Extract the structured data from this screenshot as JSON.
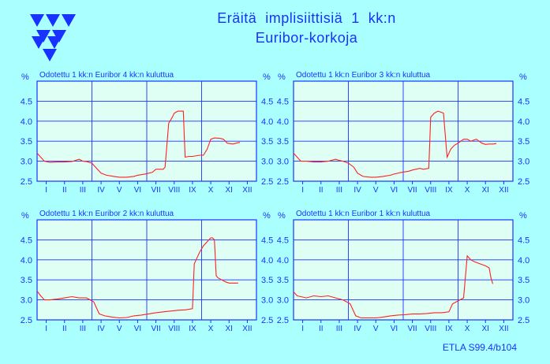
{
  "page": {
    "title_line1": "Eräitä  implisiittisiä  1  kk:n",
    "title_line2": "Euribor-korkoja",
    "footer": "ETLA S99.4/b104"
  },
  "colors": {
    "background": "#aaffff",
    "plot_bg": "#dffff5",
    "frame": "#1a32ff",
    "line": "#ff2020",
    "text": "#1a32ff"
  },
  "chart_data": [
    {
      "type": "line",
      "title": "Odotettu 1 kk:n Euribor 4 kk:n kuluttua",
      "ylabel": "%",
      "ylim": [
        2.5,
        5.0
      ],
      "yticks": [
        "2.5",
        "3.0",
        "3.5",
        "4.0",
        "4.5"
      ],
      "xticks": [
        "I",
        "II",
        "III",
        "IV",
        "V",
        "VI",
        "VII",
        "VIII",
        "IX",
        "X",
        "XI",
        "XII"
      ],
      "xlim": [
        0.5,
        12.5
      ],
      "series": [
        {
          "x": [
            0.5,
            0.7,
            0.9,
            1.2,
            1.6,
            2,
            2.4,
            2.8,
            3.0,
            3.2,
            3.5,
            3.8,
            4.0,
            4.3,
            4.7,
            5,
            5.4,
            5.8,
            6,
            6.4,
            6.8,
            7,
            7.4,
            7.5,
            7.7,
            7.9,
            8.0,
            8.2,
            8.4,
            8.5,
            8.6,
            8.8,
            9.0,
            9.4,
            9.6,
            9.8,
            10.0,
            10.2,
            10.5,
            10.7,
            10.9,
            11.2,
            11.4,
            11.6
          ],
          "values": [
            3.2,
            3.1,
            3.0,
            2.97,
            2.98,
            2.98,
            2.99,
            3.05,
            3.0,
            2.99,
            2.95,
            2.8,
            2.7,
            2.65,
            2.62,
            2.6,
            2.6,
            2.62,
            2.65,
            2.68,
            2.72,
            2.8,
            2.8,
            2.85,
            3.95,
            4.1,
            4.2,
            4.25,
            4.25,
            4.25,
            3.1,
            3.12,
            3.12,
            3.15,
            3.15,
            3.3,
            3.55,
            3.58,
            3.57,
            3.55,
            3.45,
            3.43,
            3.45,
            3.47
          ]
        }
      ]
    },
    {
      "type": "line",
      "title": "Odotettu 1 kk:n Euribor 3 kk:n kuluttua",
      "ylabel": "%",
      "ylim": [
        2.5,
        5.0
      ],
      "yticks": [
        "2.5",
        "3.0",
        "3.5",
        "4.0",
        "4.5"
      ],
      "xticks": [
        "I",
        "II",
        "III",
        "IV",
        "V",
        "VI",
        "VII",
        "VIII",
        "IX",
        "X",
        "XI",
        "XII"
      ],
      "xlim": [
        0.5,
        12.5
      ],
      "series": [
        {
          "x": [
            0.5,
            0.7,
            0.9,
            1.2,
            1.6,
            2,
            2.4,
            2.8,
            3.0,
            3.2,
            3.5,
            3.8,
            4.0,
            4.3,
            4.7,
            5,
            5.4,
            5.8,
            6,
            6.4,
            6.8,
            7,
            7.4,
            7.6,
            7.9,
            8.0,
            8.2,
            8.4,
            8.6,
            8.7,
            8.9,
            9.1,
            9.3,
            9.5,
            9.8,
            10.0,
            10.2,
            10.5,
            10.8,
            11.0,
            11.2,
            11.4,
            11.6
          ],
          "values": [
            3.2,
            3.1,
            3.0,
            3.0,
            2.98,
            2.98,
            3.0,
            3.05,
            3.02,
            3.0,
            2.95,
            2.85,
            2.7,
            2.62,
            2.6,
            2.6,
            2.62,
            2.65,
            2.68,
            2.72,
            2.75,
            2.78,
            2.82,
            2.8,
            2.82,
            4.1,
            4.2,
            4.25,
            4.22,
            4.2,
            3.1,
            3.3,
            3.4,
            3.45,
            3.55,
            3.55,
            3.5,
            3.55,
            3.45,
            3.42,
            3.43,
            3.43,
            3.44
          ]
        }
      ]
    },
    {
      "type": "line",
      "title": "Odotettu 1 kk:n Euribor 2 kk:n kuluttua",
      "ylabel": "%",
      "ylim": [
        2.5,
        5.0
      ],
      "yticks": [
        "2.5",
        "3.0",
        "3.5",
        "4.0",
        "4.5"
      ],
      "xticks": [
        "I",
        "II",
        "III",
        "IV",
        "V",
        "VI",
        "VII",
        "VIII",
        "IX",
        "X",
        "XI",
        "XII"
      ],
      "xlim": [
        0.5,
        12.5
      ],
      "series": [
        {
          "x": [
            0.5,
            0.7,
            0.9,
            1.2,
            1.6,
            2,
            2.4,
            2.8,
            3.2,
            3.6,
            3.9,
            4.2,
            4.6,
            5,
            5.4,
            5.8,
            6.2,
            6.6,
            7,
            7.4,
            7.8,
            8.2,
            8.6,
            9.0,
            9.1,
            9.2,
            9.4,
            9.6,
            9.8,
            10.0,
            10.1,
            10.2,
            10.3,
            10.4,
            10.6,
            10.8,
            11.0,
            11.3,
            11.5
          ],
          "values": [
            3.22,
            3.1,
            3.0,
            3.0,
            3.02,
            3.05,
            3.08,
            3.05,
            3.05,
            2.95,
            2.65,
            2.6,
            2.57,
            2.55,
            2.56,
            2.6,
            2.62,
            2.65,
            2.68,
            2.7,
            2.72,
            2.74,
            2.75,
            2.78,
            3.9,
            4.0,
            4.2,
            4.35,
            4.45,
            4.55,
            4.55,
            4.5,
            3.6,
            3.55,
            3.5,
            3.45,
            3.42,
            3.42,
            3.42
          ]
        }
      ]
    },
    {
      "type": "line",
      "title": "Odotettu 1 kk:n Euribor 1 kk:n kuluttua",
      "ylabel": "%",
      "ylim": [
        2.5,
        5.0
      ],
      "yticks": [
        "2.5",
        "3.0",
        "3.5",
        "4.0",
        "4.5"
      ],
      "xticks": [
        "I",
        "II",
        "III",
        "IV",
        "V",
        "VI",
        "VII",
        "VIII",
        "IX",
        "X",
        "XI",
        "XII"
      ],
      "xlim": [
        0.5,
        12.5
      ],
      "series": [
        {
          "x": [
            0.5,
            0.7,
            0.9,
            1.2,
            1.6,
            2,
            2.4,
            2.8,
            3.2,
            3.6,
            3.9,
            4.2,
            4.6,
            5,
            5.4,
            5.8,
            6.2,
            6.6,
            7,
            7.4,
            7.8,
            8.2,
            8.6,
            9.0,
            9.2,
            9.4,
            9.6,
            9.8,
            10.0,
            10.1,
            10.2,
            10.4,
            10.7,
            11.0,
            11.2,
            11.3,
            11.4
          ],
          "values": [
            3.2,
            3.1,
            3.08,
            3.05,
            3.1,
            3.08,
            3.1,
            3.05,
            3.0,
            2.9,
            2.6,
            2.55,
            2.55,
            2.55,
            2.57,
            2.6,
            2.62,
            2.63,
            2.65,
            2.65,
            2.66,
            2.68,
            2.68,
            2.7,
            2.9,
            2.95,
            3.0,
            3.05,
            4.1,
            4.05,
            4.0,
            3.95,
            3.9,
            3.85,
            3.8,
            3.55,
            3.4
          ]
        }
      ]
    }
  ]
}
